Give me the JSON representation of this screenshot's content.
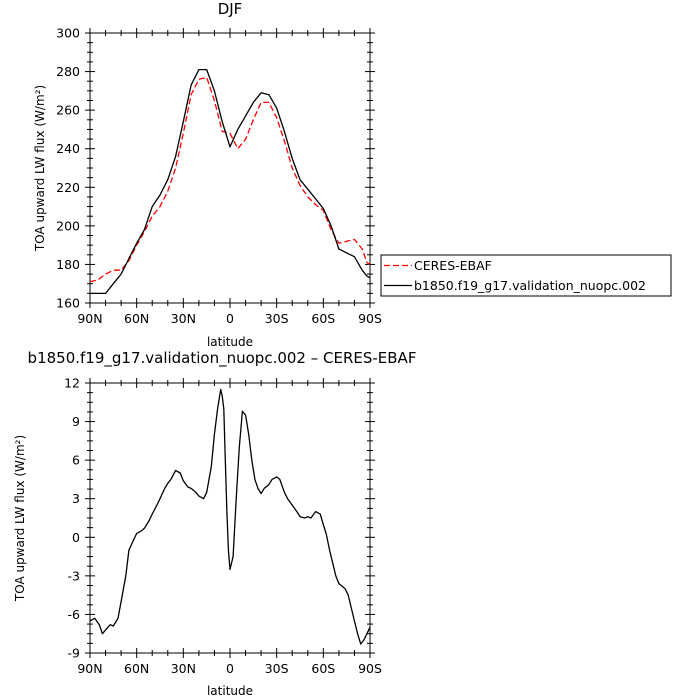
{
  "chart_data": [
    {
      "type": "line",
      "title": "DJF",
      "xlabel": "latitude",
      "ylabel": "TOA upward LW flux (W/m²)",
      "ylim": [
        160,
        300
      ],
      "yticks": [
        160,
        180,
        200,
        220,
        240,
        260,
        280,
        300
      ],
      "xlim": [
        90,
        -90
      ],
      "xtick_values": [
        90,
        60,
        30,
        0,
        -30,
        -60,
        -90
      ],
      "xtick_labels": [
        "90N",
        "60N",
        "30N",
        "0",
        "30S",
        "60S",
        "90S"
      ],
      "grid": false,
      "legend_position": "right",
      "series": [
        {
          "name": "CERES-EBAF",
          "color": "#ff0000",
          "style": "dashed",
          "x": [
            90,
            85,
            80,
            75,
            70,
            65,
            60,
            55,
            50,
            45,
            40,
            35,
            30,
            25,
            20,
            15,
            10,
            5,
            0,
            -5,
            -10,
            -15,
            -20,
            -25,
            -30,
            -35,
            -40,
            -45,
            -50,
            -55,
            -60,
            -65,
            -70,
            -75,
            -80,
            -85,
            -88,
            -90
          ],
          "y": [
            171,
            172,
            175,
            177,
            177,
            182,
            190,
            197,
            205,
            210,
            218,
            230,
            248,
            268,
            276,
            277,
            265,
            249,
            248,
            240,
            245,
            255,
            264,
            264,
            256,
            244,
            230,
            221,
            215,
            211,
            208,
            198,
            191,
            192,
            193,
            188,
            181,
            180
          ]
        },
        {
          "name": "b1850.f19_g17.validation_nuopc.002",
          "color": "#000000",
          "style": "solid",
          "x": [
            90,
            85,
            80,
            75,
            70,
            65,
            60,
            55,
            50,
            45,
            40,
            35,
            30,
            25,
            20,
            15,
            10,
            5,
            0,
            -5,
            -10,
            -15,
            -20,
            -25,
            -30,
            -35,
            -40,
            -45,
            -50,
            -55,
            -60,
            -65,
            -70,
            -75,
            -80,
            -85,
            -88,
            -90
          ],
          "y": [
            165,
            165,
            165,
            170,
            175,
            183,
            191,
            198,
            210,
            216,
            224,
            236,
            254,
            273,
            281,
            281,
            270,
            254,
            241,
            250,
            257,
            264,
            269,
            268,
            261,
            249,
            235,
            224,
            219,
            214,
            209,
            200,
            188,
            186,
            184,
            177,
            174,
            173
          ]
        }
      ]
    },
    {
      "type": "line",
      "title": "b1850.f19_g17.validation_nuopc.002 – CERES-EBAF",
      "xlabel": "latitude",
      "ylabel": "TOA upward LW flux (W/m²)",
      "ylim": [
        -9,
        12
      ],
      "yticks": [
        -9,
        -6,
        -3,
        0,
        3,
        6,
        9,
        12
      ],
      "xlim": [
        90,
        -90
      ],
      "xtick_values": [
        90,
        60,
        30,
        0,
        -30,
        -60,
        -90
      ],
      "xtick_labels": [
        "90N",
        "60N",
        "30N",
        "0",
        "30S",
        "60S",
        "90S"
      ],
      "grid": false,
      "series": [
        {
          "color": "#000000",
          "style": "solid",
          "x": [
            90,
            87,
            84,
            82,
            80,
            77,
            75,
            72,
            70,
            67,
            65,
            62,
            60,
            57,
            55,
            52,
            50,
            47,
            45,
            42,
            40,
            38,
            35,
            32,
            30,
            27,
            25,
            22,
            20,
            17,
            15,
            12,
            10,
            8,
            6,
            5,
            4,
            3,
            2,
            1,
            0,
            -2,
            -4,
            -6,
            -8,
            -10,
            -12,
            -14,
            -16,
            -18,
            -20,
            -22,
            -25,
            -27,
            -30,
            -32,
            -35,
            -37,
            -40,
            -43,
            -45,
            -48,
            -50,
            -52,
            -55,
            -58,
            -60,
            -62,
            -64,
            -66,
            -68,
            -70,
            -72,
            -74,
            -76,
            -78,
            -80,
            -82,
            -84,
            -86,
            -88,
            -90
          ],
          "y": [
            -6.5,
            -6.3,
            -6.8,
            -7.5,
            -7.2,
            -6.8,
            -6.9,
            -6.3,
            -5.0,
            -3.0,
            -1.0,
            -0.2,
            0.3,
            0.5,
            0.7,
            1.3,
            1.8,
            2.5,
            3.0,
            3.8,
            4.2,
            4.5,
            5.2,
            5.0,
            4.4,
            3.9,
            3.8,
            3.5,
            3.2,
            3.0,
            3.5,
            5.5,
            8.0,
            10.0,
            11.5,
            11.0,
            10.0,
            6.0,
            2.0,
            -1.0,
            -2.5,
            -1.5,
            3.0,
            7.0,
            9.8,
            9.5,
            8.0,
            6.0,
            4.5,
            3.8,
            3.4,
            3.8,
            4.1,
            4.5,
            4.7,
            4.5,
            3.5,
            3.0,
            2.5,
            2.0,
            1.6,
            1.5,
            1.6,
            1.5,
            2.0,
            1.8,
            1.0,
            0.2,
            -1.0,
            -2.0,
            -3.0,
            -3.6,
            -3.8,
            -4.0,
            -4.5,
            -5.5,
            -6.5,
            -7.5,
            -8.3,
            -8.0,
            -7.5,
            -7.0
          ]
        }
      ]
    }
  ]
}
